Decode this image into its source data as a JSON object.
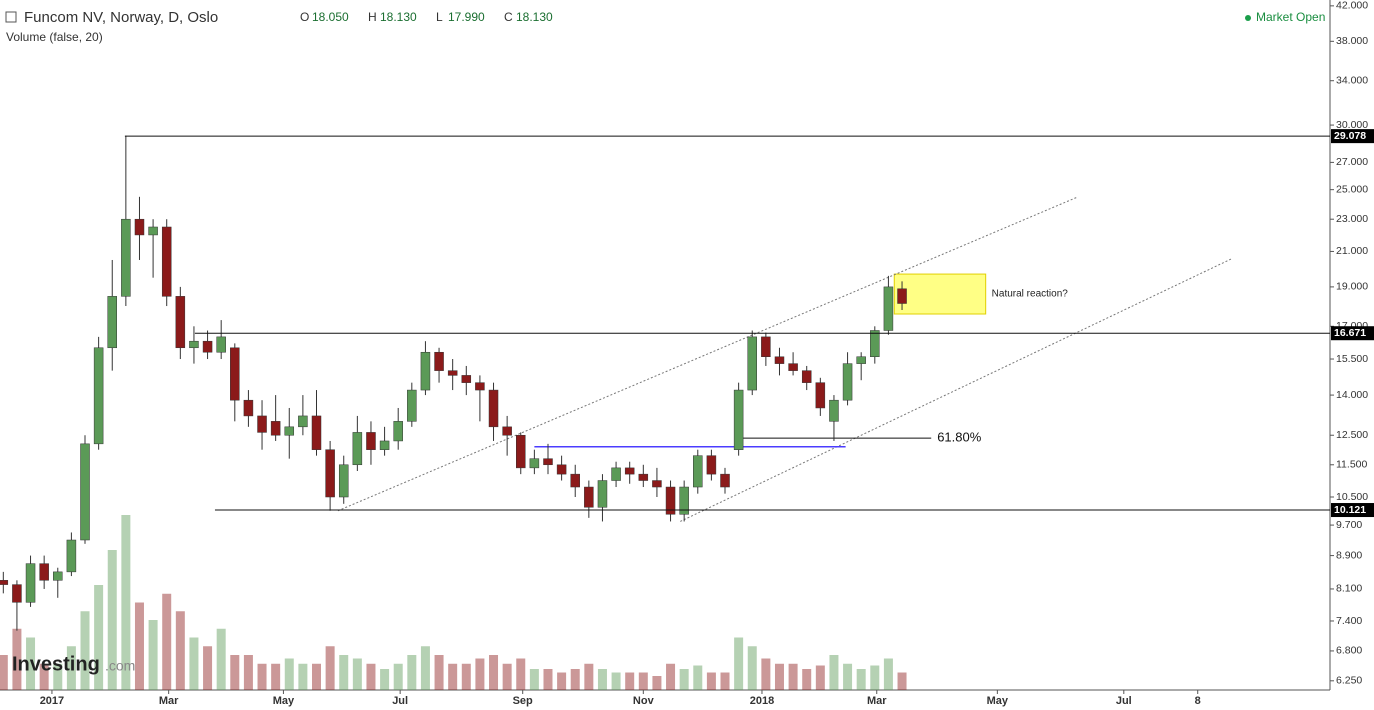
{
  "chart_data": {
    "type": "candlestick",
    "title": "Funcom NV, Norway, D, Oslo",
    "ohlc_labels": [
      "O",
      "H",
      "L",
      "C"
    ],
    "ohlc_values": [
      "18.050",
      "18.130",
      "17.990",
      "18.130"
    ],
    "subtitle": "Volume (false, 20)",
    "status": "Market Open",
    "logo": "Investing",
    "logo_suffix": ".com",
    "log_scale": true,
    "up_color": "#5b9a57",
    "down_color": "#8b1a1a",
    "ylim": [
      6.09,
      42.7
    ],
    "yticks": [
      {
        "value": 42,
        "label": "42.000"
      },
      {
        "value": 38,
        "label": "38.000"
      },
      {
        "value": 34,
        "label": "34.000"
      },
      {
        "value": 30,
        "label": "30.000"
      },
      {
        "value": 27,
        "label": "27.000"
      },
      {
        "value": 25,
        "label": "25.000"
      },
      {
        "value": 23,
        "label": "23.000"
      },
      {
        "value": 21,
        "label": "21.000"
      },
      {
        "value": 19,
        "label": "19.000"
      },
      {
        "value": 17,
        "label": "17.000"
      },
      {
        "value": 15.5,
        "label": "15.500"
      },
      {
        "value": 14,
        "label": "14.000"
      },
      {
        "value": 12.5,
        "label": "12.500"
      },
      {
        "value": 11.5,
        "label": "11.500"
      },
      {
        "value": 10.5,
        "label": "10.500"
      },
      {
        "value": 9.7,
        "label": "9.700"
      },
      {
        "value": 8.9,
        "label": "8.900"
      },
      {
        "value": 8.1,
        "label": "8.100"
      },
      {
        "value": 7.4,
        "label": "7.400"
      },
      {
        "value": 6.8,
        "label": "6.800"
      },
      {
        "value": 6.25,
        "label": "6.250"
      }
    ],
    "xlim": [
      -26.7,
      657
    ],
    "xticks": [
      {
        "value": 0,
        "label": "2017"
      },
      {
        "value": 60,
        "label": "Mar"
      },
      {
        "value": 119,
        "label": "May"
      },
      {
        "value": 179,
        "label": "Jul"
      },
      {
        "value": 242,
        "label": "Sep"
      },
      {
        "value": 304,
        "label": "Nov"
      },
      {
        "value": 365,
        "label": "2018"
      },
      {
        "value": 424,
        "label": "Mar"
      },
      {
        "value": 486,
        "label": "May"
      },
      {
        "value": 551,
        "label": "Jul"
      },
      {
        "value": 589,
        "label": "8"
      }
    ],
    "x": [
      -25,
      -18,
      -11,
      -4,
      3,
      10,
      17,
      24,
      31,
      38,
      45,
      52,
      59,
      66,
      73,
      80,
      87,
      94,
      101,
      108,
      115,
      122,
      129,
      136,
      143,
      150,
      157,
      164,
      171,
      178,
      185,
      192,
      199,
      206,
      213,
      220,
      227,
      234,
      241,
      248,
      255,
      262,
      269,
      276,
      283,
      290,
      297,
      304,
      311,
      318,
      325,
      332,
      339,
      346,
      353,
      360,
      367,
      374,
      381,
      388,
      395,
      402,
      409,
      416,
      423,
      430,
      437
    ],
    "open": [
      8.3,
      8.2,
      7.8,
      8.7,
      8.3,
      8.5,
      9.3,
      12.2,
      16.0,
      18.5,
      23.0,
      22.0,
      22.5,
      18.5,
      16.0,
      16.3,
      15.8,
      16.0,
      13.8,
      13.2,
      13.0,
      12.5,
      12.8,
      13.2,
      12.0,
      10.5,
      11.5,
      12.6,
      12.0,
      12.3,
      13.0,
      14.2,
      15.8,
      15.0,
      14.8,
      14.5,
      14.2,
      12.8,
      12.5,
      11.4,
      11.7,
      11.5,
      11.2,
      10.8,
      10.2,
      11.0,
      11.4,
      11.2,
      11.0,
      10.8,
      10.0,
      10.8,
      11.8,
      11.2,
      12.0,
      14.2,
      16.5,
      15.6,
      15.3,
      15.0,
      14.5,
      13.0,
      13.8,
      15.3,
      15.6,
      16.8,
      18.9
    ],
    "high": [
      8.5,
      8.3,
      8.9,
      8.9,
      8.6,
      9.5,
      12.5,
      16.5,
      20.5,
      29.1,
      24.5,
      23.0,
      23.0,
      19.0,
      17.0,
      16.8,
      17.3,
      16.2,
      14.2,
      13.8,
      14.0,
      13.5,
      14.0,
      14.2,
      12.3,
      11.8,
      13.2,
      13.0,
      12.8,
      13.5,
      14.5,
      16.3,
      16.0,
      15.5,
      15.2,
      14.8,
      14.5,
      13.2,
      12.6,
      12.0,
      12.2,
      11.8,
      11.5,
      11.0,
      11.2,
      11.6,
      11.6,
      11.5,
      11.4,
      11.0,
      11.0,
      12.0,
      12.0,
      11.4,
      14.5,
      16.8,
      16.7,
      16.0,
      15.8,
      15.2,
      14.7,
      14.0,
      15.8,
      15.8,
      17.0,
      19.6,
      19.3
    ],
    "low": [
      8.0,
      7.2,
      7.7,
      8.1,
      7.9,
      8.4,
      9.2,
      12.0,
      15.0,
      18.0,
      20.5,
      19.5,
      18.0,
      15.5,
      15.3,
      15.5,
      15.5,
      13.0,
      12.8,
      12.0,
      12.3,
      11.7,
      12.5,
      11.8,
      10.1,
      10.3,
      11.3,
      11.5,
      11.8,
      12.0,
      12.8,
      14.0,
      14.5,
      14.2,
      14.0,
      13.0,
      12.3,
      11.8,
      11.2,
      11.2,
      11.2,
      11.0,
      10.5,
      9.9,
      9.8,
      10.8,
      10.9,
      10.8,
      10.5,
      9.8,
      9.8,
      10.6,
      11.0,
      10.6,
      11.8,
      14.0,
      15.2,
      14.8,
      14.8,
      14.2,
      13.2,
      12.3,
      13.6,
      14.6,
      15.3,
      16.6,
      17.8
    ],
    "close": [
      8.2,
      7.8,
      8.7,
      8.3,
      8.5,
      9.3,
      12.2,
      16.0,
      18.5,
      23.0,
      22.0,
      22.5,
      18.5,
      16.0,
      16.3,
      15.8,
      16.5,
      13.8,
      13.2,
      12.6,
      12.5,
      12.8,
      13.2,
      12.0,
      10.5,
      11.5,
      12.6,
      12.0,
      12.3,
      13.0,
      14.2,
      15.8,
      15.0,
      14.8,
      14.5,
      14.2,
      12.8,
      12.5,
      11.4,
      11.7,
      11.5,
      11.2,
      10.8,
      10.2,
      11.0,
      11.4,
      11.2,
      11.0,
      10.8,
      10.0,
      10.8,
      11.8,
      11.2,
      10.8,
      14.2,
      16.5,
      15.6,
      15.3,
      15.0,
      14.5,
      13.5,
      13.8,
      15.3,
      15.6,
      16.8,
      19.0,
      18.13
    ],
    "volume_ylim": [
      0,
      100
    ],
    "volume": [
      20,
      35,
      30,
      15,
      15,
      25,
      45,
      60,
      80,
      100,
      50,
      40,
      55,
      45,
      30,
      25,
      35,
      20,
      20,
      15,
      15,
      18,
      15,
      15,
      25,
      20,
      18,
      15,
      12,
      15,
      20,
      25,
      20,
      15,
      15,
      18,
      20,
      15,
      18,
      12,
      12,
      10,
      12,
      15,
      12,
      10,
      10,
      10,
      8,
      15,
      12,
      14,
      10,
      10,
      30,
      25,
      18,
      15,
      15,
      12,
      14,
      20,
      15,
      12,
      14,
      18,
      10
    ],
    "hlines": [
      {
        "value": 29.078,
        "x0": 37.5
      },
      {
        "value": 16.671,
        "x0": 73.5
      },
      {
        "value": 10.121,
        "x0": 83.8
      }
    ],
    "support_line": {
      "x": [
        248,
        408
      ],
      "y": [
        12.1,
        12.1
      ],
      "color": "#4b3cff"
    },
    "fib_line": {
      "x": [
        352,
        452
      ],
      "y": [
        12.4,
        12.4
      ],
      "label": "61.80%"
    },
    "channel": [
      {
        "x": [
          147,
          527.5
        ],
        "y": [
          10.1,
          24.5
        ]
      },
      {
        "x": [
          323,
          607
        ],
        "y": [
          9.8,
          20.6
        ]
      }
    ],
    "box": {
      "x": [
        433,
        480
      ],
      "y": [
        17.6,
        19.7
      ],
      "color": "#ffff66",
      "label": "Natural reaction?"
    }
  }
}
